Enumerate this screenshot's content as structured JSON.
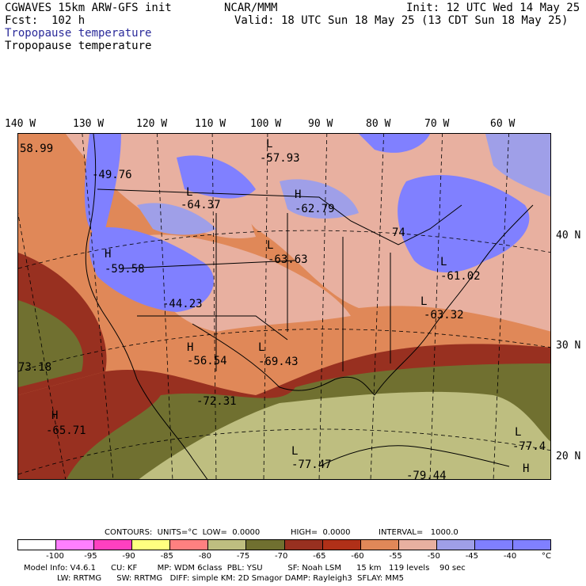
{
  "header": {
    "model": "CGWAVES 15km ARW-GFS init",
    "center": "NCAR/MMM",
    "init": "Init: 12 UTC Wed 14 May 25",
    "fcst": "Fcst:  102 h",
    "valid": "Valid: 18 UTC Sun 18 May 25 (13 CDT Sun 18 May 25)",
    "field1": "Tropopause temperature",
    "field2": "Tropopause temperature"
  },
  "lon_labels": [
    "140 W",
    "130 W",
    "120 W",
    "110 W",
    "100 W",
    "90 W",
    "80 W",
    "70 W",
    "60 W"
  ],
  "lat_labels": [
    "40 N",
    "30 N",
    "20 N"
  ],
  "map_labels": {
    "l1": "L",
    "l1v": "-57.93",
    "l2": "L",
    "l2v": "-64.37",
    "h1": "H",
    "h1v": "-62.79",
    "v1": "-49.76",
    "h2": "H",
    "h2v": "-59.58",
    "l3": "L",
    "l3v": "-63.63",
    "v2": "-44.23",
    "h3": "H",
    "h3v": "-56.54",
    "l4": "L",
    "l4v": "-69.43",
    "v3": "-72.31",
    "h4": "H",
    "h4v": "-65.71",
    "l5": "L",
    "l5v": "-77.47",
    "l6": "L",
    "l6v": "-61.02",
    "l7": "L",
    "l7v": "-63.32",
    "v4": "-79.44",
    "l8": "L",
    "l8v": "-77.4",
    "v5": "58.99",
    "v6": "73.18",
    "v7": "74",
    "h5": "H"
  },
  "contours": {
    "units": "CONTOURS:  UNITS=°C  LOW=  0.0000",
    "high": "HIGH=  0.0000",
    "interval": "INTERVAL=   1000.0"
  },
  "colorbar": {
    "colors": [
      "#ffffff",
      "#ff7fff",
      "#ff40c0",
      "#ffff80",
      "#ff8080",
      "#bebe80",
      "#707030",
      "#983020",
      "#b03018",
      "#e08858",
      "#e8b0a0",
      "#9f9fe8",
      "#7f7fff",
      "#8080ff"
    ],
    "labels": [
      "-100",
      "-95",
      "-90",
      "-85",
      "-80",
      "-75",
      "-70",
      "-65",
      "-60",
      "-55",
      "-50",
      "-45",
      "-40",
      "°C"
    ]
  },
  "footer": {
    "line1": "Model Info: V4.6.1      CU: KF        MP: WDM 6class  PBL: YSU          SF: Noah LSM      15 km   119 levels    90 sec",
    "line2": "LW: RRTMG      SW: RRTMG   DIFF: simple KM: 2D Smagor DAMP: Rayleigh3  SFLAY: MM5"
  }
}
